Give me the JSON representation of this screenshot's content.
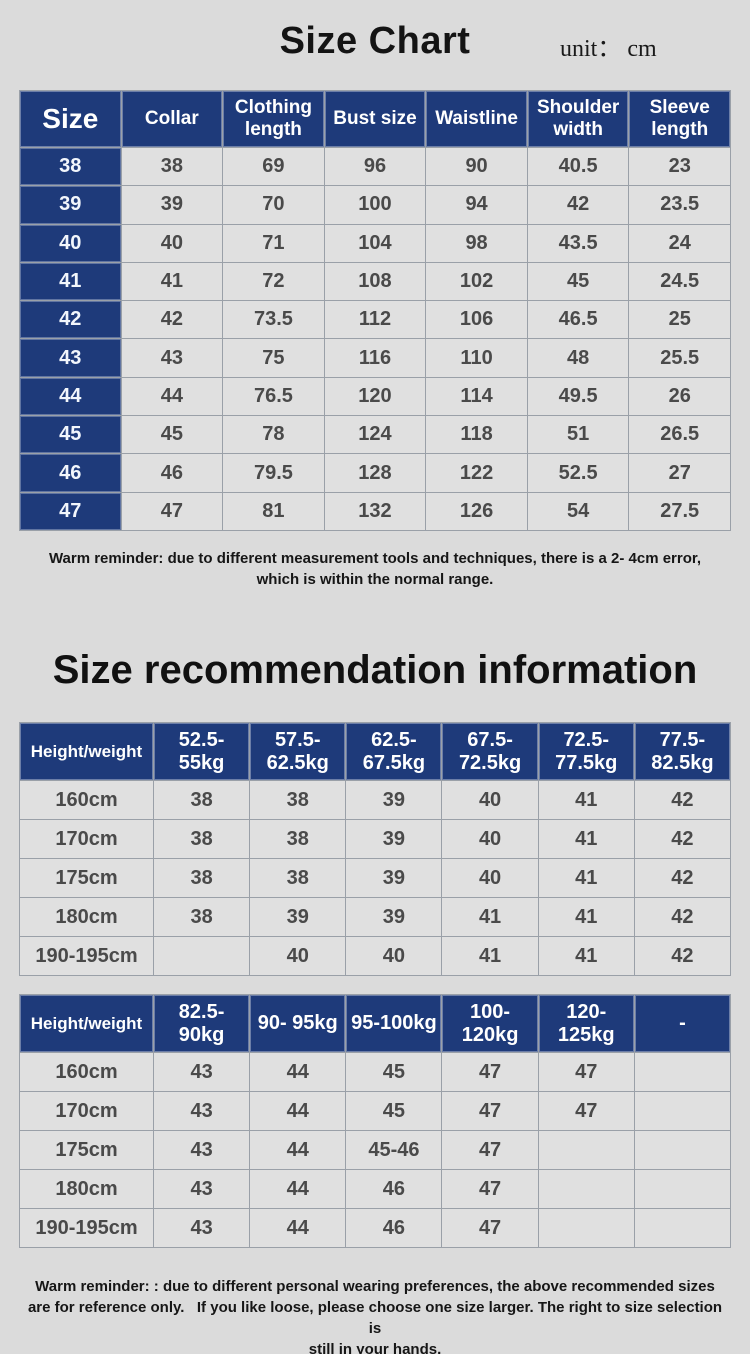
{
  "colors": {
    "header_navy": "#1e3a7a",
    "page_background": "#dbdbdb",
    "cell_background": "#e0e0e0",
    "grid_line": "#9aa0a8",
    "data_text": "#4a4a4a"
  },
  "header": {
    "title": "Size Chart",
    "unit": "unit： cm"
  },
  "size_chart": {
    "columns": [
      "Size",
      "Collar",
      "Clothing length",
      "Bust size",
      "Waistline",
      "Shoulder width",
      "Sleeve length"
    ],
    "rows": [
      [
        "38",
        "38",
        "69",
        "96",
        "90",
        "40.5",
        "23"
      ],
      [
        "39",
        "39",
        "70",
        "100",
        "94",
        "42",
        "23.5"
      ],
      [
        "40",
        "40",
        "71",
        "104",
        "98",
        "43.5",
        "24"
      ],
      [
        "41",
        "41",
        "72",
        "108",
        "102",
        "45",
        "24.5"
      ],
      [
        "42",
        "42",
        "73.5",
        "112",
        "106",
        "46.5",
        "25"
      ],
      [
        "43",
        "43",
        "75",
        "116",
        "110",
        "48",
        "25.5"
      ],
      [
        "44",
        "44",
        "76.5",
        "120",
        "114",
        "49.5",
        "26"
      ],
      [
        "45",
        "45",
        "78",
        "124",
        "118",
        "51",
        "26.5"
      ],
      [
        "46",
        "46",
        "79.5",
        "128",
        "122",
        "52.5",
        "27"
      ],
      [
        "47",
        "47",
        "81",
        "132",
        "126",
        "54",
        "27.5"
      ]
    ]
  },
  "reminder1": "Warm reminder: due to different measurement tools and techniques, there is a 2- 4cm error,\nwhich is within the normal range.",
  "recommendation": {
    "heading": "Size recommendation information",
    "table_low": {
      "columns": [
        "Height/weight",
        "52.5-55kg",
        "57.5-62.5kg",
        "62.5-67.5kg",
        "67.5-72.5kg",
        "72.5-77.5kg",
        "77.5-82.5kg"
      ],
      "rows": [
        [
          "160cm",
          "38",
          "38",
          "39",
          "40",
          "41",
          "42"
        ],
        [
          "170cm",
          "38",
          "38",
          "39",
          "40",
          "41",
          "42"
        ],
        [
          "175cm",
          "38",
          "38",
          "39",
          "40",
          "41",
          "42"
        ],
        [
          "180cm",
          "38",
          "39",
          "39",
          "41",
          "41",
          "42"
        ],
        [
          "190-195cm",
          "",
          "40",
          "40",
          "41",
          "41",
          "42"
        ]
      ]
    },
    "table_high": {
      "columns": [
        "Height/weight",
        "82.5-90kg",
        "90- 95kg",
        "95-100kg",
        "100-120kg",
        "120-125kg",
        "-"
      ],
      "rows": [
        [
          "160cm",
          "43",
          "44",
          "45",
          "47",
          "47",
          ""
        ],
        [
          "170cm",
          "43",
          "44",
          "45",
          "47",
          "47",
          ""
        ],
        [
          "175cm",
          "43",
          "44",
          "45-46",
          "47",
          "",
          ""
        ],
        [
          "180cm",
          "43",
          "44",
          "46",
          "47",
          "",
          ""
        ],
        [
          "190-195cm",
          "43",
          "44",
          "46",
          "47",
          "",
          ""
        ]
      ]
    }
  },
  "reminder2": "Warm reminder: : due to different personal wearing preferences, the above recommended sizes\nare for reference only.   If you like loose, please choose one size larger. The right to size selection is\nstill in your hands."
}
